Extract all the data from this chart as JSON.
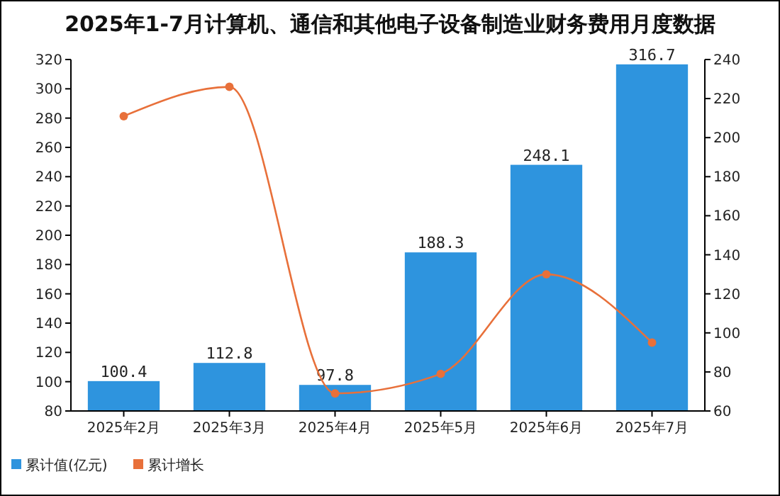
{
  "chart_data": {
    "type": "bar",
    "title": "2025年1-7月计算机、通信和其他电子设备制造业财务费用月度数据",
    "categories": [
      "2025年2月",
      "2025年3月",
      "2025年4月",
      "2025年5月",
      "2025年6月",
      "2025年7月"
    ],
    "series": [
      {
        "name": "累计值(亿元)",
        "color": "#2e94de",
        "values": [
          100.4,
          112.8,
          97.8,
          188.3,
          248.1,
          316.7
        ],
        "value_labels": [
          "100.4",
          "112.8",
          "97.8",
          "188.3",
          "248.1",
          "316.7"
        ]
      },
      {
        "name": "累计增长",
        "type": "line",
        "axis": "y2",
        "color": "#e8703a",
        "values": [
          211,
          226,
          69,
          79,
          130,
          95
        ]
      }
    ],
    "marker": "circle",
    "legend": "bottom left",
    "ylim": [
      80,
      320
    ],
    "yticks": [
      80,
      100,
      120,
      140,
      160,
      180,
      200,
      220,
      240,
      260,
      280,
      300,
      320
    ],
    "y2lim": [
      60,
      240
    ],
    "y2ticks": [
      60,
      80,
      100,
      120,
      140,
      160,
      180,
      200,
      220,
      240
    ]
  }
}
